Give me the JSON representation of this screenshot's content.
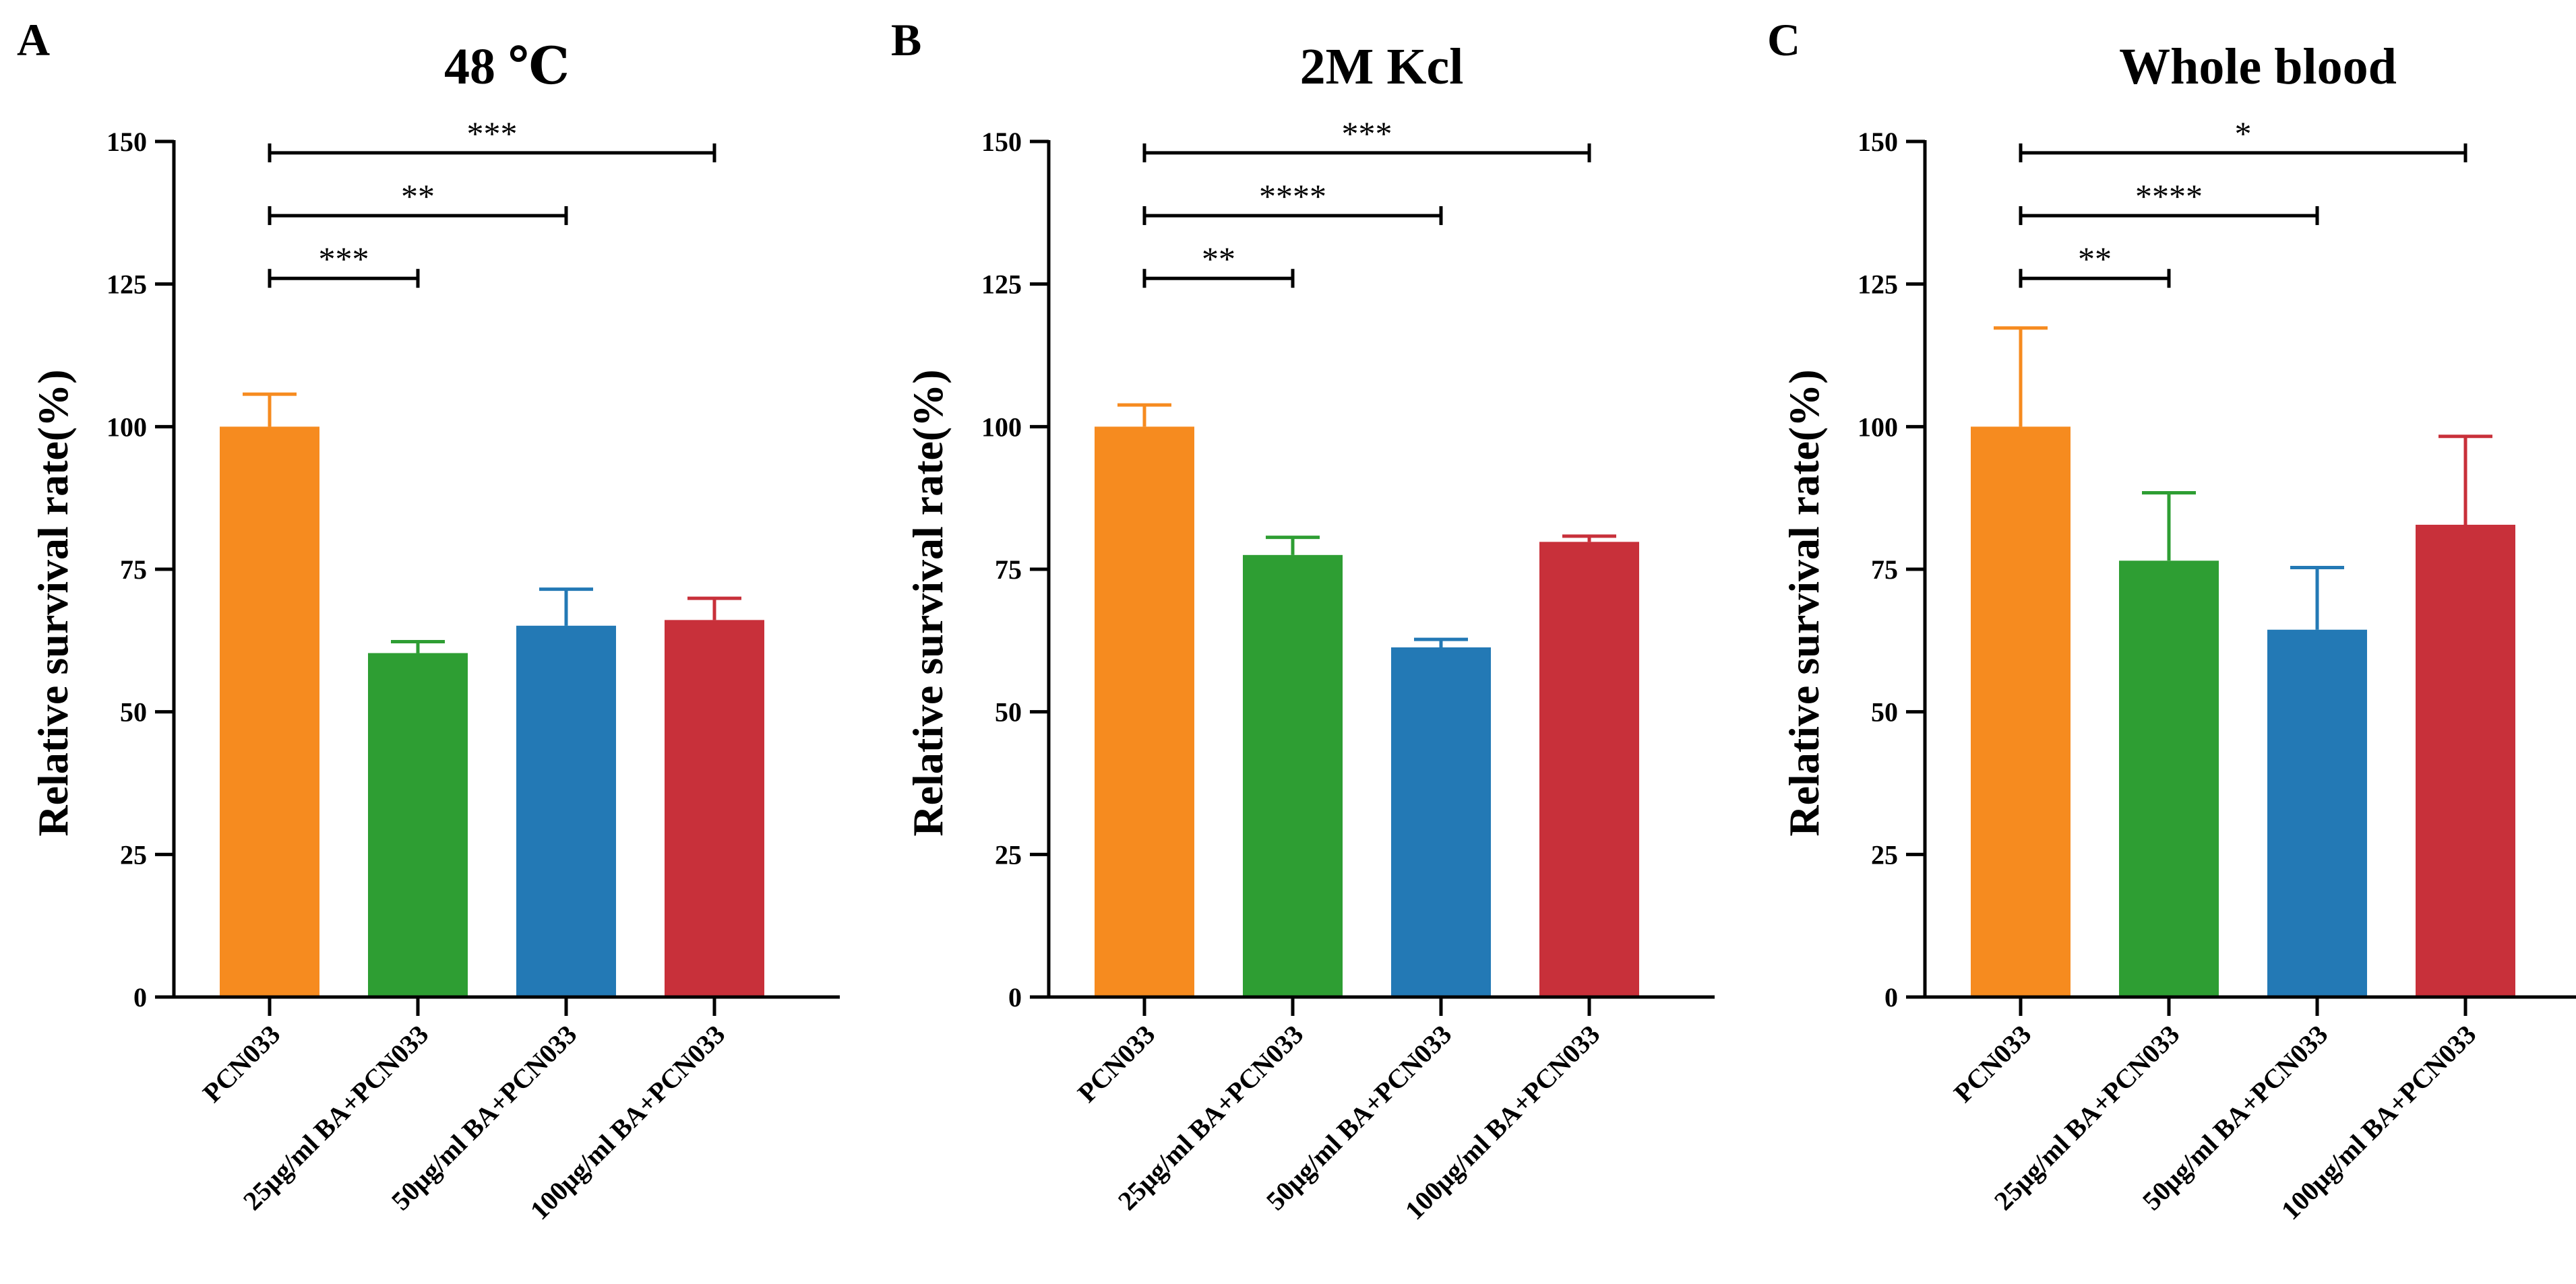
{
  "chart_data": [
    {
      "type": "bar",
      "panel_label": "A",
      "title": "48 ℃",
      "xlabel": "",
      "ylabel": "Relative survival rate(%)",
      "ylim": [
        0,
        150
      ],
      "yticks": [
        0,
        25,
        50,
        75,
        100,
        125,
        150
      ],
      "categories": [
        "PCN033",
        "25μg/ml BA+PCN033",
        "50μg/ml BA+PCN033",
        "100μg/ml BA+PCN033"
      ],
      "values": [
        100,
        60.3,
        65.1,
        66.1
      ],
      "errors": [
        5.7,
        2.0,
        6.4,
        3.8
      ],
      "colors": [
        "#F68B1F",
        "#2E9E33",
        "#2379B5",
        "#C8303A"
      ],
      "significance": [
        {
          "from": 0,
          "to": 1,
          "label": "***",
          "y": 126
        },
        {
          "from": 0,
          "to": 2,
          "label": "**",
          "y": 137
        },
        {
          "from": 0,
          "to": 3,
          "label": "***",
          "y": 148
        }
      ],
      "grid": false,
      "legend": "none"
    },
    {
      "type": "bar",
      "panel_label": "B",
      "title": "2M Kcl",
      "xlabel": "",
      "ylabel": "Relative survival rate(%)",
      "ylim": [
        0,
        150
      ],
      "yticks": [
        0,
        25,
        50,
        75,
        100,
        125,
        150
      ],
      "categories": [
        "PCN033",
        "25μg/ml BA+PCN033",
        "50μg/ml BA+PCN033",
        "100μg/ml BA+PCN033"
      ],
      "values": [
        100,
        77.5,
        61.3,
        79.8
      ],
      "errors": [
        3.8,
        3.1,
        1.4,
        1.0
      ],
      "colors": [
        "#F68B1F",
        "#2E9E33",
        "#2379B5",
        "#C8303A"
      ],
      "significance": [
        {
          "from": 0,
          "to": 1,
          "label": "**",
          "y": 126
        },
        {
          "from": 0,
          "to": 2,
          "label": "****",
          "y": 137
        },
        {
          "from": 0,
          "to": 3,
          "label": "***",
          "y": 148
        }
      ],
      "grid": false,
      "legend": "none"
    },
    {
      "type": "bar",
      "panel_label": "C",
      "title": "Whole blood",
      "xlabel": "",
      "ylabel": "Relative survival rate(%)",
      "ylim": [
        0,
        150
      ],
      "yticks": [
        0,
        25,
        50,
        75,
        100,
        125,
        150
      ],
      "categories": [
        "PCN033",
        "25μg/ml BA+PCN033",
        "50μg/ml BA+PCN033",
        "100μg/ml BA+PCN033"
      ],
      "values": [
        100,
        76.5,
        64.4,
        82.8
      ],
      "errors": [
        17.3,
        11.9,
        10.9,
        15.5
      ],
      "colors": [
        "#F68B1F",
        "#2E9E33",
        "#2379B5",
        "#C8303A"
      ],
      "significance": [
        {
          "from": 0,
          "to": 1,
          "label": "**",
          "y": 126
        },
        {
          "from": 0,
          "to": 2,
          "label": "****",
          "y": 137
        },
        {
          "from": 0,
          "to": 3,
          "label": "*",
          "y": 148
        }
      ],
      "grid": false,
      "legend": "none"
    }
  ]
}
